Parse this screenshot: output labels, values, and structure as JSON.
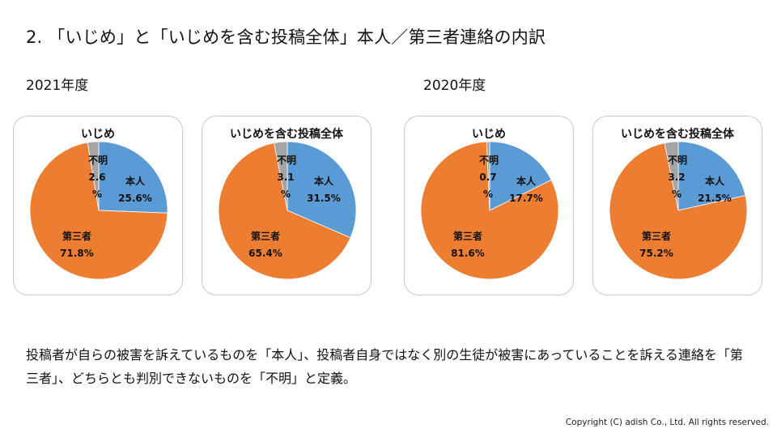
{
  "title": "2. 「いじめ」と「いじめを含む投稿全体」本人／第三者連絡の内訳",
  "years": [
    "2021年度",
    "2020年度"
  ],
  "colors": {
    "honnin": "#5b9bd5",
    "daisansha": "#ed7d31",
    "fumei": "#a5a5a5"
  },
  "chart_data": [
    {
      "type": "pie",
      "year": "2021年度",
      "title": "いじめ",
      "slices": [
        {
          "name": "本人",
          "value": 25.6
        },
        {
          "name": "第三者",
          "value": 71.8
        },
        {
          "name": "不明",
          "value": 2.6
        }
      ]
    },
    {
      "type": "pie",
      "year": "2021年度",
      "title": "いじめを含む投稿全体",
      "slices": [
        {
          "name": "本人",
          "value": 31.5
        },
        {
          "name": "第三者",
          "value": 65.4
        },
        {
          "name": "不明",
          "value": 3.1
        }
      ]
    },
    {
      "type": "pie",
      "year": "2020年度",
      "title": "いじめ",
      "slices": [
        {
          "name": "本人",
          "value": 17.7
        },
        {
          "name": "第三者",
          "value": 81.6
        },
        {
          "name": "不明",
          "value": 0.7
        }
      ]
    },
    {
      "type": "pie",
      "year": "2020年度",
      "title": "いじめを含む投稿全体",
      "slices": [
        {
          "name": "本人",
          "value": 21.5
        },
        {
          "name": "第三者",
          "value": 75.2
        },
        {
          "name": "不明",
          "value": 3.2
        }
      ]
    }
  ],
  "note": "投稿者が自らの被害を訴えているものを「本人」、投稿者自身ではなく別の生徒が被害にあっていることを訴える連絡を「第三者」、どちらとも判別できないものを「不明」と定義。",
  "copyright": "Copyright (C) adish Co., Ltd. All rights reserved."
}
